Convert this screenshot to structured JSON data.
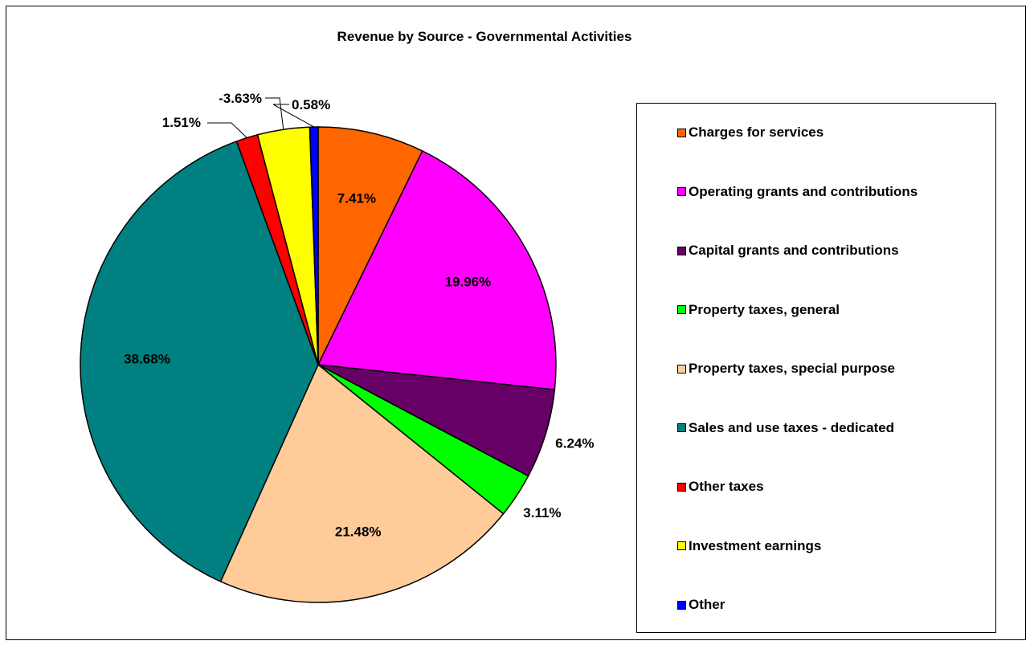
{
  "chart_data": {
    "type": "pie",
    "title": "Revenue by Source - Governmental Activities",
    "legend_position": "right",
    "slices": [
      {
        "name": "Charges for services",
        "value": 7.41,
        "label": "7.41%",
        "color": "#FF6600"
      },
      {
        "name": "Operating grants and contributions",
        "value": 19.96,
        "label": "19.96%",
        "color": "#FF00FF"
      },
      {
        "name": "Capital grants and contributions",
        "value": 6.24,
        "label": "6.24%",
        "color": "#660066"
      },
      {
        "name": "Property taxes, general",
        "value": 3.11,
        "label": "3.11%",
        "color": "#00FF00"
      },
      {
        "name": "Property taxes, special purpose",
        "value": 21.48,
        "label": "21.48%",
        "color": "#FFCC99"
      },
      {
        "name": "Sales and use taxes - dedicated",
        "value": 38.68,
        "label": "38.68%",
        "color": "#008080"
      },
      {
        "name": "Other taxes",
        "value": 1.51,
        "label": "1.51%",
        "color": "#FF0000"
      },
      {
        "name": "Investment earnings",
        "value": -3.63,
        "label": "-3.63%",
        "color": "#FFFF00"
      },
      {
        "name": "Other",
        "value": 0.58,
        "label": "0.58%",
        "color": "#0000FF"
      }
    ]
  }
}
